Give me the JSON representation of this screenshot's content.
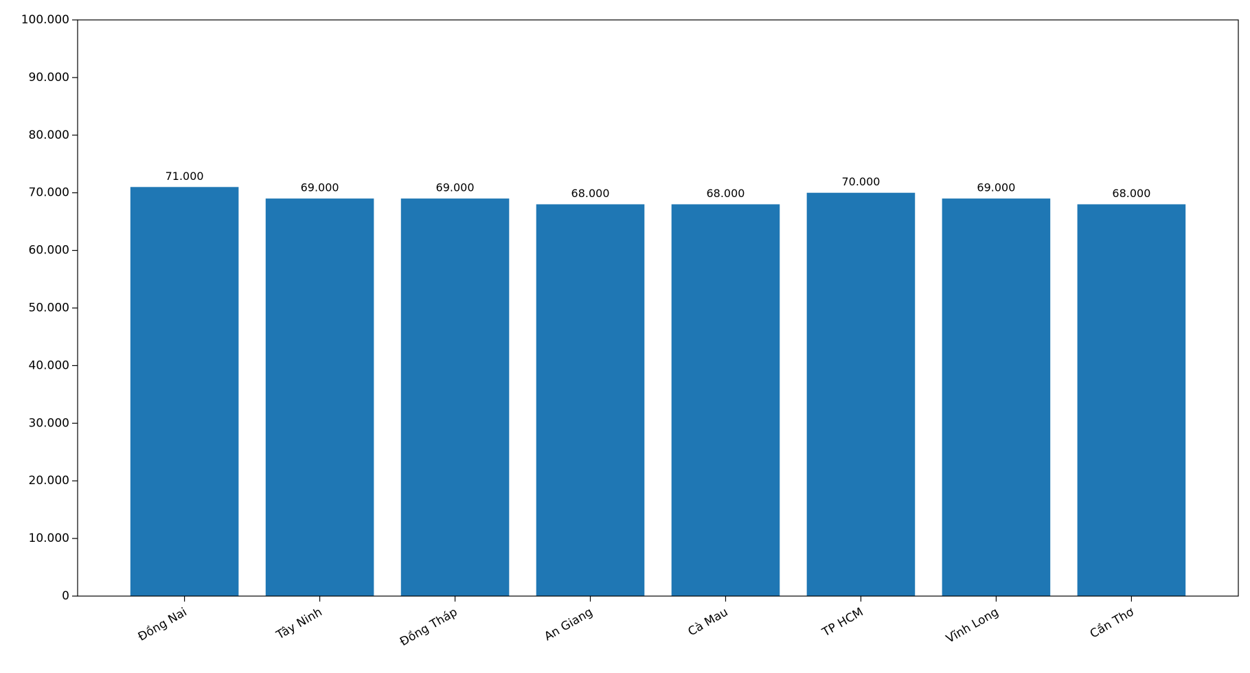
{
  "chart_data": {
    "type": "bar",
    "categories": [
      "Đồng Nai",
      "Tây Ninh",
      "Đồng Tháp",
      "An Giang",
      "Cà Mau",
      "TP HCM",
      "Vĩnh Long",
      "Cần Thơ"
    ],
    "values": [
      71000,
      69000,
      69000,
      68000,
      68000,
      70000,
      69000,
      68000
    ],
    "value_labels": [
      "71.000",
      "69.000",
      "69.000",
      "68.000",
      "68.000",
      "70.000",
      "69.000",
      "68.000"
    ],
    "color": "#1f77b4",
    "ylim": [
      0,
      100000
    ],
    "yticks": [
      0,
      {
        "value": 10000,
        "label": "10.000"
      },
      {
        "value": 20000,
        "label": "20.000"
      },
      {
        "value": 30000,
        "label": "30.000"
      },
      {
        "value": 40000,
        "label": "40.000"
      },
      {
        "value": 50000,
        "label": "50.000"
      },
      {
        "value": 60000,
        "label": "60.000"
      },
      {
        "value": 70000,
        "label": "70.000"
      },
      {
        "value": 80000,
        "label": "80.000"
      },
      {
        "value": 90000,
        "label": "90.000"
      },
      {
        "value": 100000,
        "label": "100.000"
      }
    ],
    "grid": false
  }
}
